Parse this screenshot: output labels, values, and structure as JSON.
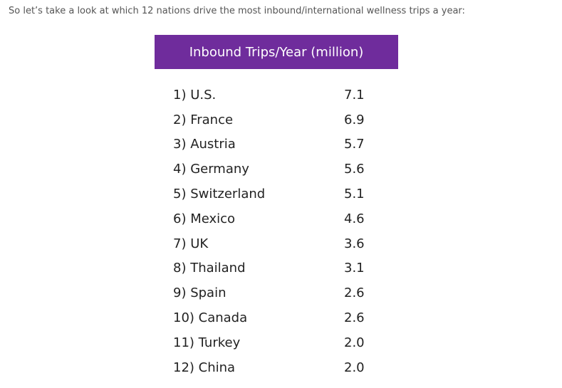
{
  "intro_text": "So let’s take a look at which 12 nations drive the most inbound/international wellness trips a year:",
  "accent_color": "#6f2c9c",
  "chart_data": {
    "type": "table",
    "title": "Inbound Trips/Year (million)",
    "rows": [
      {
        "label": "1) U.S.",
        "value": "7.1"
      },
      {
        "label": "2) France",
        "value": "6.9"
      },
      {
        "label": "3) Austria",
        "value": "5.7"
      },
      {
        "label": "4) Germany",
        "value": "5.6"
      },
      {
        "label": "5) Switzerland",
        "value": "5.1"
      },
      {
        "label": "6) Mexico",
        "value": "4.6"
      },
      {
        "label": "7) UK",
        "value": "3.6"
      },
      {
        "label": "8) Thailand",
        "value": "3.1"
      },
      {
        "label": "9) Spain",
        "value": "2.6"
      },
      {
        "label": "10) Canada",
        "value": "2.6"
      },
      {
        "label": "11) Turkey",
        "value": "2.0"
      },
      {
        "label": "12) China",
        "value": "2.0"
      }
    ]
  }
}
